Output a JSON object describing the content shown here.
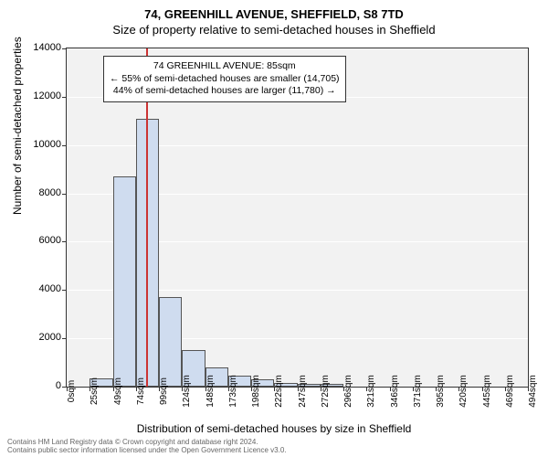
{
  "title_main": "74, GREENHILL AVENUE, SHEFFIELD, S8 7TD",
  "title_sub": "Size of property relative to semi-detached houses in Sheffield",
  "y_axis_label": "Number of semi-detached properties",
  "x_axis_label": "Distribution of semi-detached houses by size in Sheffield",
  "chart": {
    "type": "histogram",
    "background_color": "#f2f2f2",
    "grid_color": "#ffffff",
    "border_color": "#333333",
    "bar_fill": "#cfdcef",
    "bar_border": "#555555",
    "marker_color": "#cc3333",
    "ylim": [
      0,
      14000
    ],
    "y_ticks": [
      0,
      2000,
      4000,
      6000,
      8000,
      10000,
      12000,
      14000
    ],
    "x_ticks": [
      "0sqm",
      "25sqm",
      "49sqm",
      "74sqm",
      "99sqm",
      "124sqm",
      "148sqm",
      "173sqm",
      "198sqm",
      "222sqm",
      "247sqm",
      "272sqm",
      "296sqm",
      "321sqm",
      "346sqm",
      "371sqm",
      "395sqm",
      "420sqm",
      "445sqm",
      "469sqm",
      "494sqm"
    ],
    "values": [
      0,
      350,
      8700,
      11100,
      3700,
      1500,
      800,
      450,
      300,
      150,
      120,
      100,
      0,
      0,
      0,
      0,
      0,
      0,
      0,
      0
    ],
    "marker_position_sqm": 85,
    "x_max_sqm": 494
  },
  "annotation": {
    "line1": "74 GREENHILL AVENUE: 85sqm",
    "line2": "← 55% of semi-detached houses are smaller (14,705)",
    "line3": "44% of semi-detached houses are larger (11,780) →"
  },
  "footer": {
    "line1": "Contains HM Land Registry data © Crown copyright and database right 2024.",
    "line2": "Contains public sector information licensed under the Open Government Licence v3.0."
  },
  "style": {
    "title_fontsize": 13,
    "axis_label_fontsize": 12,
    "tick_fontsize": 11,
    "annotation_fontsize": 10.5,
    "footer_fontsize": 8,
    "footer_color": "#666666"
  }
}
